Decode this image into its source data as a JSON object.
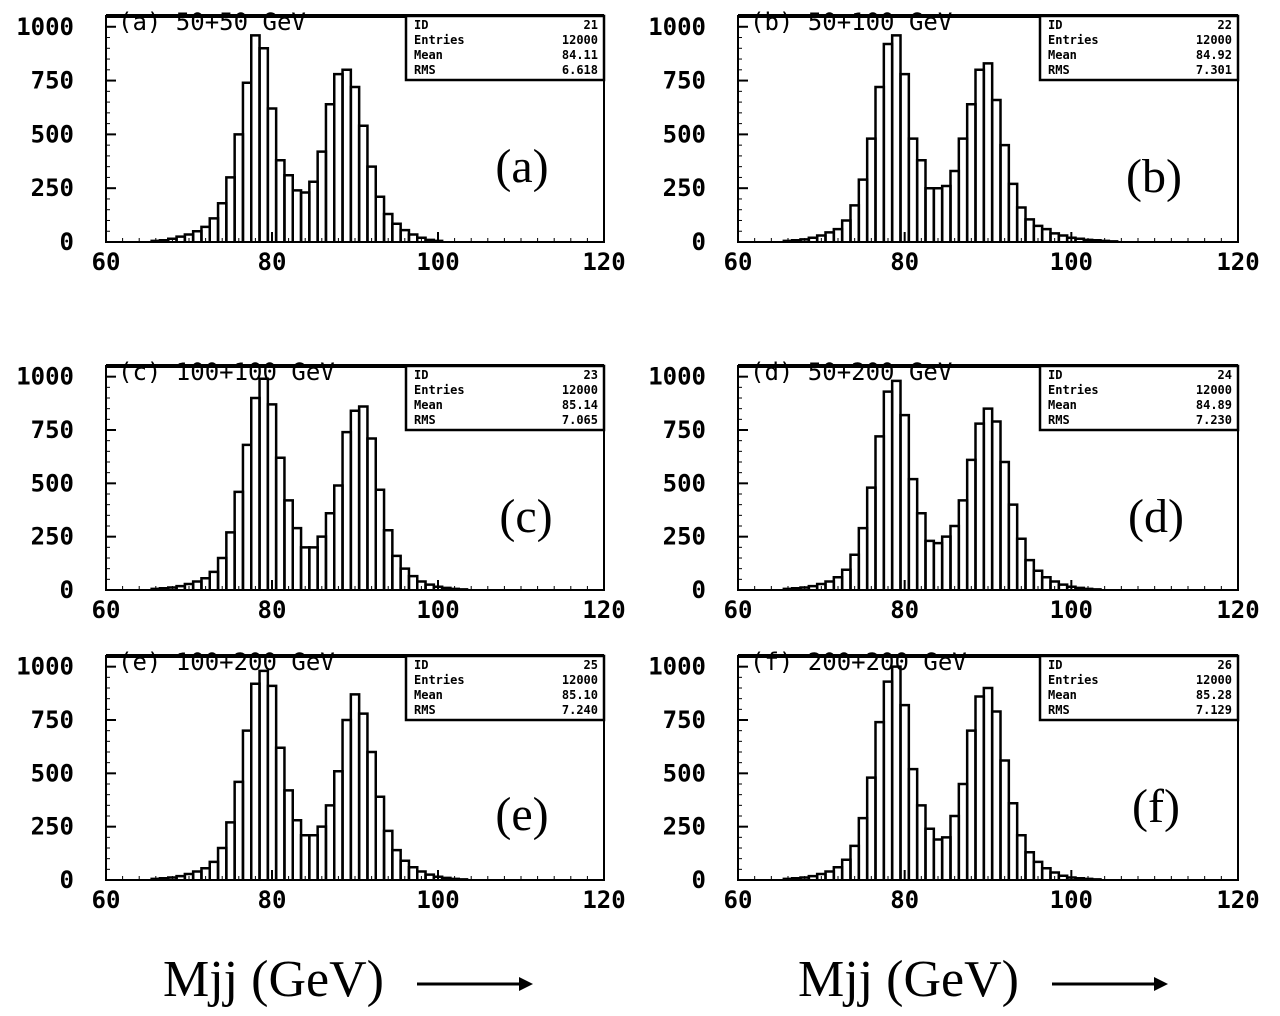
{
  "chart_data": [
    {
      "type": "bar",
      "panel_label": "(a)",
      "title": "(a) 50+50 GeV",
      "xlim": [
        60,
        120
      ],
      "ylim": [
        0,
        1050
      ],
      "xticks": [
        "60",
        "80",
        "100",
        "120"
      ],
      "yticks": [
        "0",
        "250",
        "500",
        "750",
        "1000"
      ],
      "stats": {
        "ID": "21",
        "Entries": "12000",
        "Mean": "84.11",
        "RMS": "6.618"
      },
      "bin_width": 1,
      "x": [
        66,
        67,
        68,
        69,
        70,
        71,
        72,
        73,
        74,
        75,
        76,
        77,
        78,
        79,
        80,
        81,
        82,
        83,
        84,
        85,
        86,
        87,
        88,
        89,
        90,
        91,
        92,
        93,
        94,
        95,
        96,
        97,
        98,
        99,
        100
      ],
      "values": [
        5,
        8,
        15,
        25,
        35,
        50,
        70,
        110,
        180,
        300,
        500,
        740,
        960,
        900,
        620,
        380,
        310,
        240,
        230,
        280,
        420,
        640,
        780,
        800,
        720,
        540,
        350,
        210,
        130,
        85,
        55,
        35,
        20,
        10,
        5
      ]
    },
    {
      "type": "bar",
      "panel_label": "(b)",
      "title": "(b) 50+100 GeV",
      "xlim": [
        60,
        120
      ],
      "ylim": [
        0,
        1050
      ],
      "xticks": [
        "60",
        "80",
        "100",
        "120"
      ],
      "yticks": [
        "0",
        "250",
        "500",
        "750",
        "1000"
      ],
      "stats": {
        "ID": "22",
        "Entries": "12000",
        "Mean": "84.92",
        "RMS": "7.301"
      },
      "bin_width": 1,
      "x": [
        66,
        67,
        68,
        69,
        70,
        71,
        72,
        73,
        74,
        75,
        76,
        77,
        78,
        79,
        80,
        81,
        82,
        83,
        84,
        85,
        86,
        87,
        88,
        89,
        90,
        91,
        92,
        93,
        94,
        95,
        96,
        97,
        98,
        99,
        100,
        101,
        102,
        103,
        104,
        105
      ],
      "values": [
        5,
        8,
        12,
        20,
        30,
        45,
        60,
        100,
        170,
        290,
        480,
        720,
        920,
        960,
        780,
        480,
        380,
        250,
        250,
        260,
        330,
        480,
        640,
        800,
        830,
        660,
        450,
        270,
        160,
        105,
        75,
        60,
        40,
        30,
        20,
        15,
        10,
        8,
        5,
        3
      ]
    },
    {
      "type": "bar",
      "panel_label": "(c)",
      "title": "(c) 100+100 GeV",
      "xlim": [
        60,
        120
      ],
      "ylim": [
        0,
        1050
      ],
      "xticks": [
        "60",
        "80",
        "100",
        "120"
      ],
      "yticks": [
        "0",
        "250",
        "500",
        "750",
        "1000"
      ],
      "stats": {
        "ID": "23",
        "Entries": "12000",
        "Mean": "85.14",
        "RMS": "7.065"
      },
      "bin_width": 1,
      "x": [
        66,
        67,
        68,
        69,
        70,
        71,
        72,
        73,
        74,
        75,
        76,
        77,
        78,
        79,
        80,
        81,
        82,
        83,
        84,
        85,
        86,
        87,
        88,
        89,
        90,
        91,
        92,
        93,
        94,
        95,
        96,
        97,
        98,
        99,
        100,
        101,
        102,
        103
      ],
      "values": [
        5,
        8,
        12,
        18,
        28,
        40,
        55,
        85,
        150,
        270,
        460,
        680,
        900,
        990,
        870,
        620,
        420,
        290,
        200,
        200,
        250,
        360,
        490,
        740,
        840,
        860,
        710,
        470,
        280,
        160,
        100,
        65,
        40,
        25,
        15,
        10,
        5,
        3
      ]
    },
    {
      "type": "bar",
      "panel_label": "(d)",
      "title": "(d) 50+200 GeV",
      "xlim": [
        60,
        120
      ],
      "ylim": [
        0,
        1050
      ],
      "xticks": [
        "60",
        "80",
        "100",
        "120"
      ],
      "yticks": [
        "0",
        "250",
        "500",
        "750",
        "1000"
      ],
      "stats": {
        "ID": "24",
        "Entries": "12000",
        "Mean": "84.89",
        "RMS": "7.230"
      },
      "bin_width": 1,
      "x": [
        66,
        67,
        68,
        69,
        70,
        71,
        72,
        73,
        74,
        75,
        76,
        77,
        78,
        79,
        80,
        81,
        82,
        83,
        84,
        85,
        86,
        87,
        88,
        89,
        90,
        91,
        92,
        93,
        94,
        95,
        96,
        97,
        98,
        99,
        100,
        101,
        102,
        103
      ],
      "values": [
        5,
        8,
        12,
        18,
        28,
        40,
        60,
        95,
        165,
        290,
        480,
        720,
        930,
        980,
        820,
        520,
        360,
        230,
        220,
        250,
        300,
        420,
        610,
        780,
        850,
        790,
        600,
        400,
        240,
        140,
        90,
        60,
        40,
        25,
        15,
        10,
        5,
        3
      ]
    },
    {
      "type": "bar",
      "panel_label": "(e)",
      "title": "(e) 100+200 GeV",
      "xlim": [
        60,
        120
      ],
      "ylim": [
        0,
        1050
      ],
      "xticks": [
        "60",
        "80",
        "100",
        "120"
      ],
      "yticks": [
        "0",
        "250",
        "500",
        "750",
        "1000"
      ],
      "stats": {
        "ID": "25",
        "Entries": "12000",
        "Mean": "85.10",
        "RMS": "7.240"
      },
      "bin_width": 1,
      "x": [
        66,
        67,
        68,
        69,
        70,
        71,
        72,
        73,
        74,
        75,
        76,
        77,
        78,
        79,
        80,
        81,
        82,
        83,
        84,
        85,
        86,
        87,
        88,
        89,
        90,
        91,
        92,
        93,
        94,
        95,
        96,
        97,
        98,
        99,
        100,
        101,
        102,
        103
      ],
      "values": [
        5,
        8,
        12,
        18,
        28,
        40,
        55,
        85,
        150,
        270,
        460,
        700,
        920,
        980,
        910,
        620,
        420,
        280,
        210,
        210,
        250,
        350,
        510,
        750,
        870,
        780,
        600,
        390,
        230,
        140,
        90,
        60,
        40,
        25,
        15,
        10,
        5,
        3
      ]
    },
    {
      "type": "bar",
      "panel_label": "(f)",
      "title": "(f) 200+200 GeV",
      "xlim": [
        60,
        120
      ],
      "ylim": [
        0,
        1050
      ],
      "xticks": [
        "60",
        "80",
        "100",
        "120"
      ],
      "yticks": [
        "0",
        "250",
        "500",
        "750",
        "1000"
      ],
      "stats": {
        "ID": "26",
        "Entries": "12000",
        "Mean": "85.28",
        "RMS": "7.129"
      },
      "bin_width": 1,
      "x": [
        66,
        67,
        68,
        69,
        70,
        71,
        72,
        73,
        74,
        75,
        76,
        77,
        78,
        79,
        80,
        81,
        82,
        83,
        84,
        85,
        86,
        87,
        88,
        89,
        90,
        91,
        92,
        93,
        94,
        95,
        96,
        97,
        98,
        99,
        100,
        101,
        102,
        103
      ],
      "values": [
        5,
        8,
        12,
        18,
        28,
        40,
        60,
        95,
        160,
        290,
        480,
        740,
        930,
        1000,
        820,
        520,
        350,
        240,
        190,
        200,
        300,
        450,
        700,
        860,
        900,
        790,
        560,
        360,
        210,
        130,
        85,
        55,
        35,
        20,
        12,
        8,
        5,
        3
      ]
    }
  ],
  "stat_labels": [
    "ID",
    "Entries",
    "Mean",
    "RMS"
  ],
  "xlabel_left": "Mjj  (GeV)",
  "xlabel_right": "Mjj  (GeV)"
}
